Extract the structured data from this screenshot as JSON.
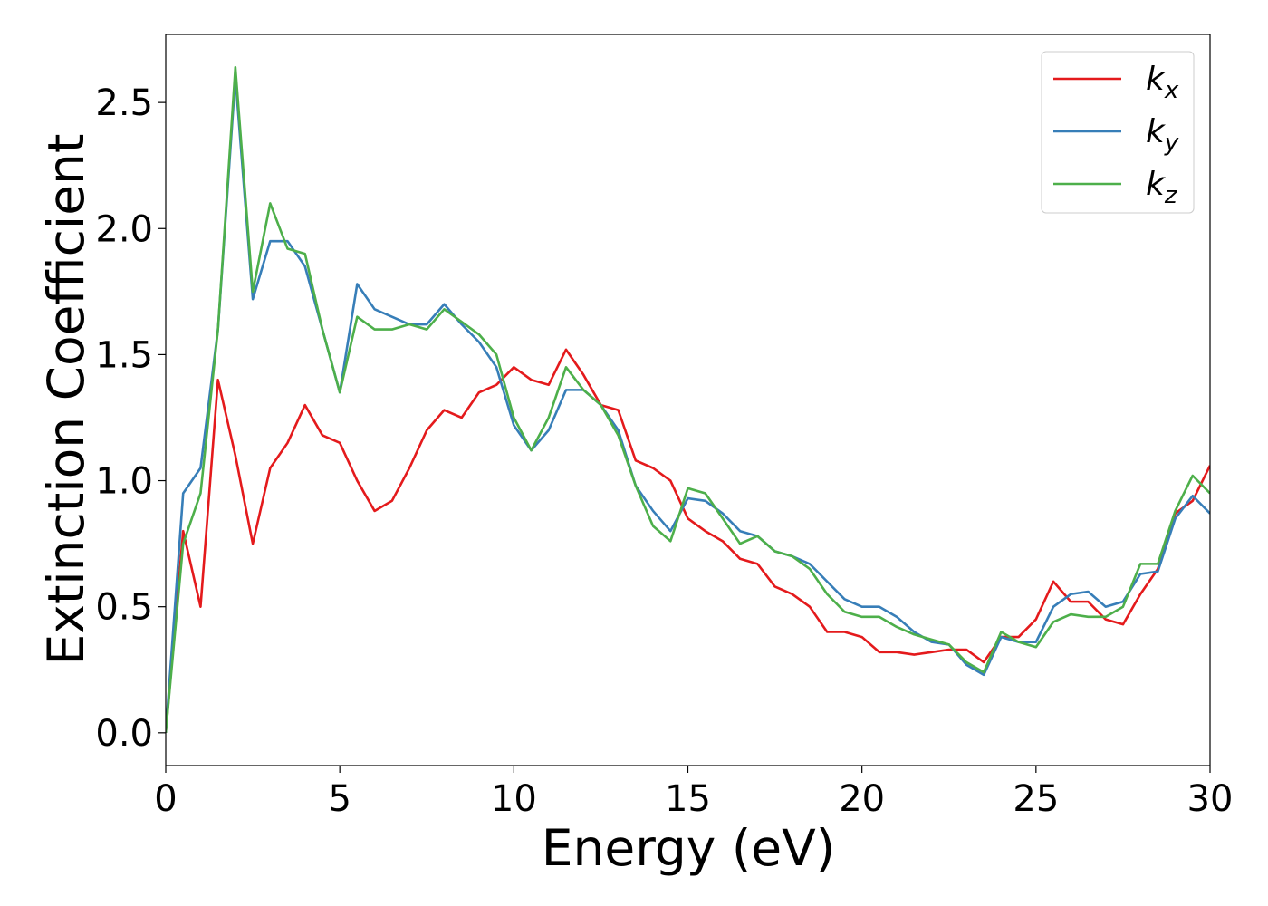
{
  "chart_data": {
    "type": "line",
    "xlabel": "Energy (eV)",
    "ylabel": "Extinction Coefficient",
    "x": [
      0,
      0.5,
      1,
      1.5,
      2,
      2.5,
      3,
      3.5,
      4,
      4.5,
      5,
      5.5,
      6,
      6.5,
      7,
      7.5,
      8,
      8.5,
      9,
      9.5,
      10,
      10.5,
      11,
      11.5,
      12,
      12.5,
      13,
      13.5,
      14,
      14.5,
      15,
      15.5,
      16,
      16.5,
      17,
      17.5,
      18,
      18.5,
      19,
      19.5,
      20,
      20.5,
      21,
      21.5,
      22,
      22.5,
      23,
      23.5,
      24,
      24.5,
      25,
      25.5,
      26,
      26.5,
      27,
      27.5,
      28,
      28.5,
      29,
      29.5,
      30
    ],
    "series": [
      {
        "name": "k_x",
        "color": "#e41a1c",
        "values": [
          0,
          0.8,
          0.5,
          1.4,
          1.1,
          0.75,
          1.05,
          1.15,
          1.3,
          1.18,
          1.15,
          1.0,
          0.88,
          0.92,
          1.05,
          1.2,
          1.28,
          1.25,
          1.35,
          1.38,
          1.45,
          1.4,
          1.38,
          1.52,
          1.42,
          1.3,
          1.28,
          1.08,
          1.05,
          1.0,
          0.85,
          0.8,
          0.76,
          0.69,
          0.67,
          0.58,
          0.55,
          0.5,
          0.4,
          0.4,
          0.38,
          0.32,
          0.32,
          0.31,
          0.32,
          0.33,
          0.33,
          0.28,
          0.38,
          0.38,
          0.45,
          0.6,
          0.52,
          0.52,
          0.45,
          0.43,
          0.55,
          0.65,
          0.87,
          0.92,
          1.06
        ]
      },
      {
        "name": "k_y",
        "color": "#377eb8",
        "values": [
          0,
          0.95,
          1.05,
          1.6,
          2.6,
          1.72,
          1.95,
          1.95,
          1.85,
          1.6,
          1.35,
          1.78,
          1.68,
          1.65,
          1.62,
          1.62,
          1.7,
          1.62,
          1.55,
          1.45,
          1.22,
          1.12,
          1.2,
          1.36,
          1.36,
          1.3,
          1.2,
          0.98,
          0.88,
          0.8,
          0.93,
          0.92,
          0.87,
          0.8,
          0.78,
          0.72,
          0.7,
          0.67,
          0.6,
          0.53,
          0.5,
          0.5,
          0.46,
          0.4,
          0.36,
          0.35,
          0.27,
          0.23,
          0.38,
          0.36,
          0.36,
          0.5,
          0.55,
          0.56,
          0.5,
          0.52,
          0.63,
          0.64,
          0.85,
          0.94,
          0.87
        ]
      },
      {
        "name": "k_z",
        "color": "#4daf4a",
        "values": [
          0,
          0.75,
          0.95,
          1.6,
          2.64,
          1.75,
          2.1,
          1.92,
          1.9,
          1.6,
          1.35,
          1.65,
          1.6,
          1.6,
          1.62,
          1.6,
          1.68,
          1.63,
          1.58,
          1.5,
          1.25,
          1.12,
          1.25,
          1.45,
          1.36,
          1.3,
          1.18,
          0.98,
          0.82,
          0.76,
          0.97,
          0.95,
          0.85,
          0.75,
          0.78,
          0.72,
          0.7,
          0.65,
          0.55,
          0.48,
          0.46,
          0.46,
          0.42,
          0.39,
          0.37,
          0.35,
          0.28,
          0.24,
          0.4,
          0.36,
          0.34,
          0.44,
          0.47,
          0.46,
          0.46,
          0.5,
          0.67,
          0.67,
          0.88,
          1.02,
          0.95
        ]
      }
    ],
    "xlim": [
      0,
      30
    ],
    "xticks": [
      0,
      5,
      10,
      15,
      20,
      25,
      30
    ],
    "ylim": [
      -0.13,
      2.77
    ],
    "yticks": [
      {
        "value": 0,
        "label": "0.0"
      },
      0.5,
      {
        "value": 1,
        "label": "1.0"
      },
      1.5,
      {
        "value": 2,
        "label": "2.0"
      },
      2.5
    ],
    "grid": false,
    "legend": "upper right"
  }
}
